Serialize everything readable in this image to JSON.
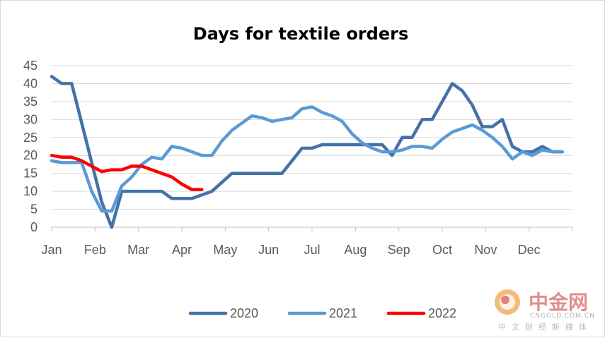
{
  "chart_data": {
    "type": "line",
    "title": "Days for textile orders",
    "xlabel": "",
    "ylabel": "",
    "ylim": [
      0,
      45
    ],
    "yticks": [
      0,
      5,
      10,
      15,
      20,
      25,
      30,
      35,
      40,
      45
    ],
    "xlim": [
      1,
      53
    ],
    "month_labels": [
      "Jan",
      "Feb",
      "Mar",
      "Apr",
      "May",
      "Jun",
      "Jul",
      "Aug",
      "Sep",
      "Oct",
      "Nov",
      "Dec"
    ],
    "grid": "horizontal",
    "legend_position": "bottom",
    "series": [
      {
        "name": "2020",
        "color": "#4472a8",
        "x": [
          1,
          2,
          3,
          4,
          5,
          6,
          7,
          8,
          9,
          10,
          11,
          12,
          13,
          14,
          15,
          16,
          17,
          18,
          19,
          20,
          21,
          22,
          23,
          24,
          25,
          26,
          27,
          28,
          29,
          30,
          31,
          32,
          33,
          34,
          35,
          36,
          37,
          38,
          39,
          40,
          41,
          42,
          43,
          44,
          45,
          46,
          47,
          48,
          49,
          50,
          51,
          52
        ],
        "values": [
          42,
          40,
          40,
          29,
          18,
          7,
          0,
          10,
          10,
          10,
          10,
          10,
          8,
          8,
          8,
          9,
          10,
          12.5,
          15,
          15,
          15,
          15,
          15,
          15,
          18.5,
          22,
          22,
          23,
          23,
          23,
          23,
          23,
          23,
          23,
          20,
          25,
          25,
          30,
          30,
          35,
          40,
          38,
          34,
          28,
          28,
          30,
          22.5,
          21,
          21,
          22.5,
          21,
          21
        ]
      },
      {
        "name": "2021",
        "color": "#5b9bd5",
        "x": [
          1,
          2,
          3,
          4,
          5,
          6,
          7,
          8,
          9,
          10,
          11,
          12,
          13,
          14,
          15,
          16,
          17,
          18,
          19,
          20,
          21,
          22,
          23,
          24,
          25,
          26,
          27,
          28,
          29,
          30,
          31,
          32,
          33,
          34,
          35,
          36,
          37,
          38,
          39,
          40,
          41,
          42,
          43,
          44,
          45,
          46,
          47,
          48,
          49,
          50,
          51,
          52
        ],
        "values": [
          18.5,
          18,
          18,
          18,
          10,
          4.5,
          4.5,
          11.5,
          14,
          17.5,
          19.5,
          19,
          22.5,
          22,
          21,
          20,
          20,
          24,
          27,
          29,
          31,
          30.5,
          29.5,
          30,
          30.5,
          33,
          33.5,
          32,
          31,
          29.5,
          26,
          23.5,
          22,
          21,
          21,
          21.5,
          22.5,
          22.5,
          22,
          24.5,
          26.5,
          27.5,
          28.5,
          27,
          25,
          22.5,
          19,
          21,
          20,
          21.5,
          21,
          21
        ]
      },
      {
        "name": "2022",
        "color": "#ff0000",
        "x": [
          1,
          2,
          3,
          4,
          5,
          6,
          7,
          8,
          9,
          10,
          11,
          12,
          13,
          14,
          15,
          16
        ],
        "values": [
          20,
          19.5,
          19.5,
          18.5,
          17,
          15.5,
          16,
          16,
          17,
          17,
          16,
          15,
          14,
          12,
          10.5,
          10.5
        ]
      }
    ]
  },
  "watermark": {
    "brand": "中金网",
    "domain": "CNGOLD.COM.CN",
    "tagline": "中文财经新媒体"
  }
}
